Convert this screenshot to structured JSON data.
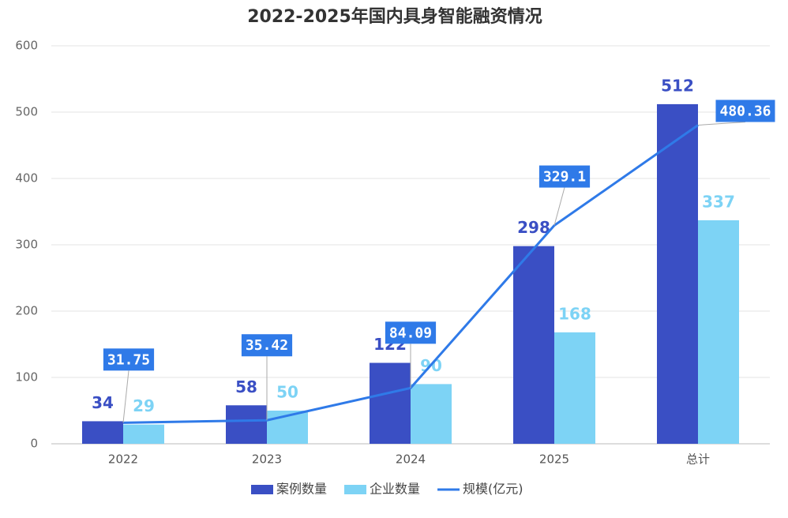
{
  "chart_data": {
    "type": "bar",
    "title": "2022-2025年国内具身智能融资情况",
    "categories": [
      "2022",
      "2023",
      "2024",
      "2025",
      "总计"
    ],
    "series": [
      {
        "name": "案例数量",
        "color": "#3a4fc4",
        "values": [
          34,
          58,
          122,
          298,
          512
        ]
      },
      {
        "name": "企业数量",
        "color": "#7dd3f5",
        "values": [
          29,
          50,
          90,
          168,
          337
        ]
      },
      {
        "name": "规模(亿元)",
        "color": "#2f7ae8",
        "type": "line",
        "values": [
          31.75,
          35.42,
          84.09,
          329.1,
          480.36
        ]
      }
    ],
    "ylim": [
      0,
      600
    ],
    "yticks": [
      0,
      100,
      200,
      300,
      400,
      500,
      600
    ],
    "grid": true,
    "legend": "bottom"
  }
}
